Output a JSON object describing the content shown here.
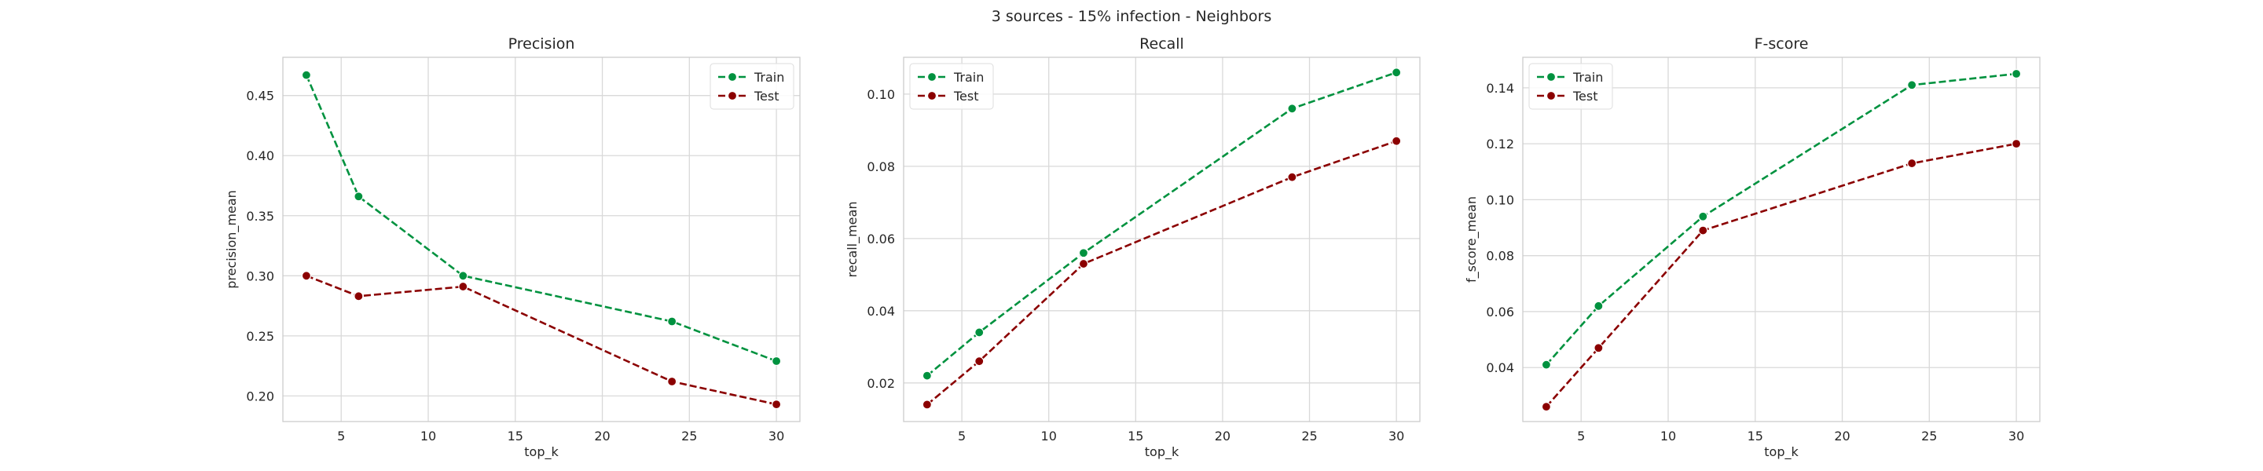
{
  "figure_title": "3 sources - 15% infection - Neighbors",
  "colors": {
    "train": "#00923F",
    "test": "#8B0000",
    "grid": "#d9d9d9",
    "spine": "#cccccc"
  },
  "chart_data": [
    {
      "type": "line",
      "title": "Precision",
      "xlabel": "top_k",
      "ylabel": "precision_mean",
      "x": [
        3,
        6,
        12,
        24,
        30
      ],
      "xlim": [
        1.65,
        31.35
      ],
      "ylim": [
        0.1787,
        0.4818
      ],
      "xticks": [
        5,
        10,
        15,
        20,
        25,
        30
      ],
      "yticks": [
        0.2,
        0.25,
        0.3,
        0.35,
        0.4,
        0.45
      ],
      "ytick_decimals": 2,
      "grid": true,
      "legend": "upper right",
      "series": [
        {
          "name": "Train",
          "values": [
            0.467,
            0.366,
            0.3,
            0.262,
            0.229
          ]
        },
        {
          "name": "Test",
          "values": [
            0.3,
            0.283,
            0.291,
            0.212,
            0.193
          ]
        }
      ]
    },
    {
      "type": "line",
      "title": "Recall",
      "xlabel": "top_k",
      "ylabel": "recall_mean",
      "x": [
        3,
        6,
        12,
        24,
        30
      ],
      "xlim": [
        1.65,
        31.35
      ],
      "ylim": [
        0.0093,
        0.1102
      ],
      "xticks": [
        5,
        10,
        15,
        20,
        25,
        30
      ],
      "yticks": [
        0.02,
        0.04,
        0.06,
        0.08,
        0.1
      ],
      "ytick_decimals": 2,
      "grid": true,
      "legend": "upper left",
      "series": [
        {
          "name": "Train",
          "values": [
            0.022,
            0.034,
            0.056,
            0.096,
            0.106
          ]
        },
        {
          "name": "Test",
          "values": [
            0.014,
            0.026,
            0.053,
            0.077,
            0.087
          ]
        }
      ]
    },
    {
      "type": "line",
      "title": "F-score",
      "xlabel": "top_k",
      "ylabel": "f_score_mean",
      "x": [
        3,
        6,
        12,
        24,
        30
      ],
      "xlim": [
        1.65,
        31.35
      ],
      "ylim": [
        0.0207,
        0.1509
      ],
      "xticks": [
        5,
        10,
        15,
        20,
        25,
        30
      ],
      "yticks": [
        0.04,
        0.06,
        0.08,
        0.1,
        0.12,
        0.14
      ],
      "ytick_decimals": 2,
      "grid": true,
      "legend": "upper left",
      "series": [
        {
          "name": "Train",
          "values": [
            0.041,
            0.062,
            0.094,
            0.141,
            0.145
          ]
        },
        {
          "name": "Test",
          "values": [
            0.026,
            0.047,
            0.089,
            0.113,
            0.12
          ]
        }
      ]
    }
  ]
}
